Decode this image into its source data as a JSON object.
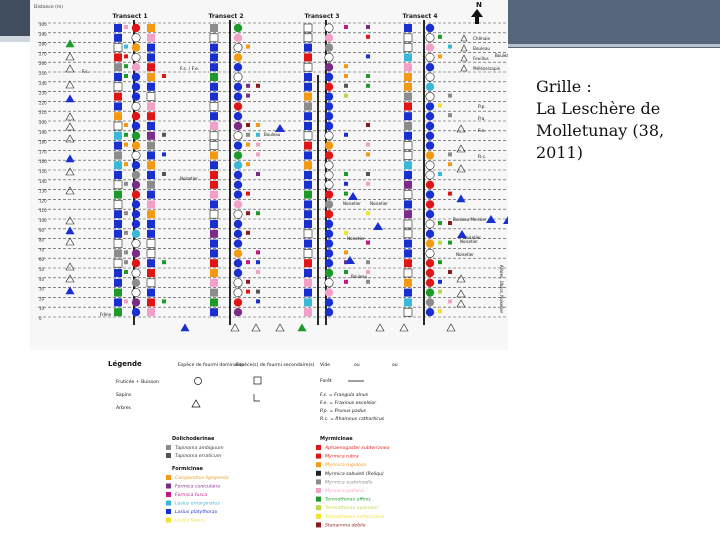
{
  "caption": {
    "line1": "Grille :",
    "line2": "La Leschère de Molletunay (38, 2011)"
  },
  "figure": {
    "distance_label": "Distance (m)",
    "transects": [
      "Transect 1",
      "Transect 2",
      "Transect 3",
      "Transect 4"
    ],
    "north_label": "N",
    "distance_ticks": [
      "0",
      "10",
      "20",
      "30",
      "40",
      "50",
      "60",
      "70",
      "80",
      "90",
      "100",
      "110",
      "120",
      "130",
      "140",
      "150",
      "160",
      "170",
      "180",
      "190",
      "200",
      "210",
      "220",
      "230",
      "240",
      "250",
      "260",
      "270",
      "280",
      "290",
      "300"
    ],
    "right_key": [
      "Chênaie",
      "Bouleau",
      "Feuillus",
      "Mélèze/sapin"
    ],
    "species_codes": [
      "F.s.",
      "P.p.",
      "P.a.",
      "F.e.",
      "R.c.",
      "F.s. / F.e."
    ],
    "tree_labels": [
      "Bouleau",
      "Bouleau",
      "Bouleau",
      "Noisetier",
      "Noisetier",
      "Noisetier",
      "Noisetier",
      "Noisetier",
      "Bouleau Merisier",
      "Noisetier",
      "Noisetier",
      "Frêne"
    ],
    "side_text": "Arbres, Ubacs, Noisetier",
    "legend": {
      "title": "Légende",
      "col_dominant": "Espèce de fourmi dominante",
      "col_secondary": "Espèce(s) de fourmi secondaire(s)",
      "empty_label": "Vide",
      "or1": "ou",
      "or2": "ou",
      "row_shrubs": "Fruticée + Buisson",
      "row_saplings": "Sapins",
      "row_trees": "Arbres",
      "forest_label": "Forêt",
      "abbrev": [
        "F.s. = Frangula alnus",
        "F.e. = Fraxinus excelsior",
        "P.p. = Prunus padus",
        "R.c. = Rhamnus catharticus"
      ],
      "group_doli": "Dolichoderinae",
      "group_form": "Formicinae",
      "group_myrm": "Myrmicinae",
      "doli_species": [
        "Tapinoma ambiguum",
        "Tapinoma erraticum"
      ],
      "form_species": [
        "Camponotus ligniperda",
        "Formica cunicularia",
        "Formica fusca",
        "Lasius emarginatus",
        "Lasius platythorax",
        "Lasius flavus"
      ],
      "myrm_species": [
        "Aphaenogaster subterranea",
        "Myrmica rubra",
        "Myrmica rugulosa",
        "Myrmica sabuleti (Reliqu)",
        "Myrmica scabrinodis",
        "Myrmica gallienii",
        "Temnothorax affinis",
        "Temnothorax nylanderi",
        "Temnothorax unifasciatus",
        "Stenamma debile"
      ]
    },
    "colors": {
      "blue": "#1a2fd0",
      "red": "#e01515",
      "green": "#1e9a2a",
      "orange": "#f39a12",
      "gray": "#8c8c8c",
      "dark_gray": "#555555",
      "pink": "#f2a0c8",
      "purple": "#7a2d88",
      "cyan": "#3bb7d8",
      "magenta": "#c2187f",
      "yellow": "#f2e22c",
      "lime": "#b8d84a",
      "maroon": "#8b1a1a"
    }
  }
}
